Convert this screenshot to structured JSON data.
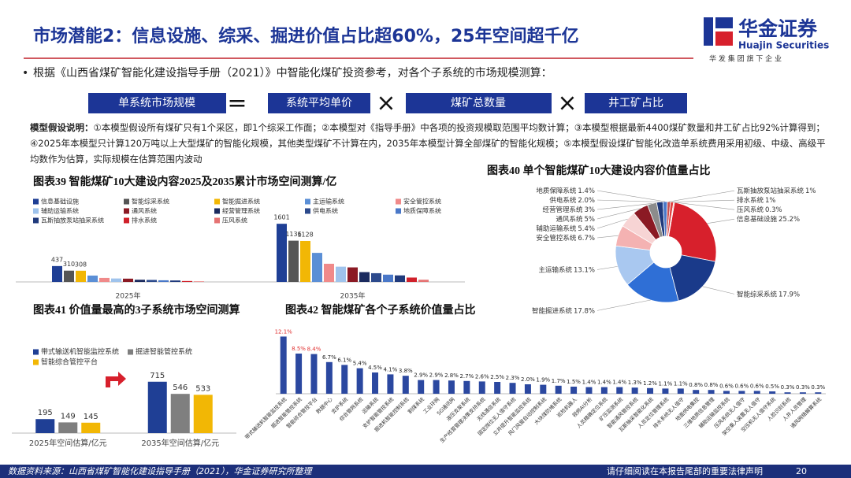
{
  "header": {
    "title": "市场潜能2：信息设施、综采、掘进价值占比超60%，25年空间超千亿",
    "logo_cn": "华金证券",
    "logo_en": "Huajin Securities",
    "logo_tagline": "华 发 集 团 旗 下 企 业"
  },
  "bullet": "根据《山西省煤矿智能化建设指导手册（2021）》中智能化煤矿投资参考，对各个子系统的市场规模测算：",
  "formula": {
    "result": "单系统市场规模",
    "equals": "=",
    "times": "×",
    "factors": [
      "系统平均单价",
      "煤矿总数量",
      "井工矿占比"
    ]
  },
  "assumption": {
    "label": "模型假设说明：",
    "text": "①本模型假设所有煤矿只有1个采区，即1个综采工作面；②本模型对《指导手册》中各项的投资规模取范围平均数计算；③本模型根据最新4400煤矿数量和井工矿占比92%计算得到；④2025年本模型只计算120万吨以上大型煤矿的智能化规模，其他类型煤矿不计算在内，2035年本模型计算全部煤矿的智能化规模；⑤本模型假设煤矿智能化改造单系统费用采用初级、中级、高级平均数作为估算，实际规模在估算范围内波动"
  },
  "chart_data": [
    {
      "type": "bar",
      "title": "图表39 智能煤矿10大建设内容2025及2035累计市场空间测算/亿",
      "categories": [
        "2025年",
        "2035年"
      ],
      "ylim": [
        0,
        1800
      ],
      "series": [
        {
          "name": "信息基础设施",
          "color": "#1f3f95",
          "values": [
            437,
            1601
          ],
          "labels": true
        },
        {
          "name": "智能综采系统",
          "color": "#555555",
          "values": [
            310,
            1136
          ],
          "labels": true
        },
        {
          "name": "智能掘进系统",
          "color": "#f2b705",
          "values": [
            308,
            1128
          ],
          "labels": true
        },
        {
          "name": "主运输系统",
          "color": "#5b8fd6",
          "values": [
            175,
            800
          ]
        },
        {
          "name": "安全管控系统",
          "color": "#f08a8a",
          "values": [
            110,
            500
          ]
        },
        {
          "name": "辅助运输系统",
          "color": "#9fc3ec",
          "values": [
            95,
            420
          ]
        },
        {
          "name": "通风系统",
          "color": "#8b1a24",
          "values": [
            90,
            400
          ]
        },
        {
          "name": "经营管理系统",
          "color": "#1a2a5e",
          "values": [
            60,
            270
          ]
        },
        {
          "name": "供电系统",
          "color": "#2c4a8c",
          "values": [
            55,
            240
          ]
        },
        {
          "name": "地质保障系统",
          "color": "#4a78c8",
          "values": [
            45,
            200
          ]
        },
        {
          "name": "瓦斯抽放泵站抽采系统",
          "color": "#203a7c",
          "values": [
            40,
            180
          ]
        },
        {
          "name": "排水系统",
          "color": "#d0202a",
          "values": [
            25,
            120
          ]
        },
        {
          "name": "压风系统",
          "color": "#e57373",
          "values": [
            15,
            60
          ]
        }
      ]
    },
    {
      "type": "pie",
      "title": "图表40 单个智能煤矿10大建设内容价值量占比",
      "categories": [
        "信息基础设施",
        "智能综采系统",
        "智能掘进系统",
        "主运输系统",
        "安全管控系统",
        "辅助运输系统",
        "通风系统",
        "经营管理系统",
        "供电系统",
        "地质保障系统",
        "瓦斯抽放泵站抽采系统",
        "排水系统",
        "压风系统"
      ],
      "values": [
        25.2,
        17.9,
        17.8,
        13.1,
        6.7,
        5.4,
        5,
        3,
        2.0,
        1.4,
        1,
        1,
        0.3
      ],
      "value_labels": [
        "25.2%",
        "17.9%",
        "17.8%",
        "13.1%",
        "6.7%",
        "5.4%",
        "5%",
        "3%",
        "2.0%",
        "1.4%",
        "1%",
        "1%",
        "0.3%"
      ],
      "colors": [
        "#d7202c",
        "#1a3a8a",
        "#2f6fd6",
        "#a9c8f0",
        "#f4b2b2",
        "#f7d4d4",
        "#8b1a24",
        "#8c8c8c",
        "#203a7c",
        "#4a78c8",
        "#c94f4f",
        "#e04040",
        "#f0a0a0"
      ]
    },
    {
      "type": "bar",
      "title": "图表41 价值量最高的3子系统市场空间测算",
      "categories": [
        "2025年空间估算/亿元",
        "2035年空间估算/亿元"
      ],
      "ylim": [
        0,
        800
      ],
      "series": [
        {
          "name": "带式输送机智能监控系统",
          "color": "#1f3f95",
          "values": [
            195,
            715
          ],
          "labels": true
        },
        {
          "name": "掘进智能管控系统",
          "color": "#7f7f7f",
          "values": [
            149,
            546
          ],
          "labels": true
        },
        {
          "name": "智能综合管控平台",
          "color": "#f2b705",
          "values": [
            145,
            533
          ],
          "labels": true
        }
      ]
    },
    {
      "type": "bar",
      "title": "图表42 智能煤矿各个子系统价值量占比",
      "color": "#2b48a0",
      "ylim": [
        0,
        14
      ],
      "categories": [
        "带式输送机智能监控系统",
        "掘进智能管控系统",
        "智能综合管控平台",
        "数据中心",
        "支护系统",
        "综合管网系统",
        "运输系统",
        "支护智能管控系统",
        "掘进机智能控制系统",
        "割煤系统",
        "工业环网",
        "5G通讯网",
        "液压支架系统",
        "生产经营管理决策支持系统",
        "无线通信系统",
        "固定岗位无人值守系统",
        "立井提升智能监控系统",
        "风门风窗自动控制系统",
        "大块煤防堵系统",
        "巡检机器人",
        "视频AI分析",
        "人员精确定位系统",
        "矿压监测系统",
        "智能通风管控系统",
        "瓦斯抽采智能化系统",
        "人员定位管理系统",
        "排水系统无人值守",
        "地面供电集控",
        "三维地质信息管理",
        "辅助运输监控系统",
        "压风系统无人值守",
        "架空乘人装置无人值守",
        "空压机无人值守系统",
        "人脸识别系统",
        "人井人员管理",
        "通风网络解算系统"
      ],
      "values": [
        12.1,
        8.5,
        8.4,
        6.7,
        6.1,
        5.4,
        4.5,
        4.1,
        3.8,
        2.9,
        2.9,
        2.8,
        2.7,
        2.6,
        2.5,
        2.3,
        2.0,
        1.9,
        1.7,
        1.5,
        1.4,
        1.4,
        1.4,
        1.3,
        1.2,
        1.1,
        1.1,
        0.8,
        0.8,
        0.6,
        0.6,
        0.6,
        0.5,
        0.3,
        0.3,
        0.3
      ],
      "value_labels": [
        "12.1%",
        "8.5%",
        "8.4%",
        "6.7%",
        "6.1%",
        "5.4%",
        "4.5%",
        "4.1%",
        "3.8%",
        "2.9%",
        "2.9%",
        "2.8%",
        "2.7%",
        "2.6%",
        "2.5%",
        "2.3%",
        "2.0%",
        "1.9%",
        "1.7%",
        "1.5%",
        "1.4%",
        "1.4%",
        "1.4%",
        "1.3%",
        "1.2%",
        "1.1%",
        "1.1%",
        "0.8%",
        "0.8%",
        "0.6%",
        "0.6%",
        "0.6%",
        "0.5%",
        "0.3%",
        "0.3%",
        "0.3%"
      ],
      "value_label_colors": [
        "#e03030",
        "#e03030",
        "#e03030",
        "#222",
        "#222",
        "#222",
        "#222",
        "#222",
        "#222",
        "#222",
        "#222",
        "#222",
        "#222",
        "#222",
        "#222",
        "#222",
        "#222",
        "#222",
        "#222",
        "#222",
        "#222",
        "#222",
        "#222",
        "#222",
        "#222",
        "#222",
        "#222",
        "#222",
        "#222",
        "#222",
        "#222",
        "#222",
        "#222",
        "#222",
        "#222",
        "#222"
      ]
    }
  ],
  "footer": {
    "source": "数据资料来源：山西省煤矿智能化建设指导手册（2021），华金证券研究所整理",
    "notice": "请仔细阅读在本报告尾部的重要法律声明",
    "page": 20
  }
}
